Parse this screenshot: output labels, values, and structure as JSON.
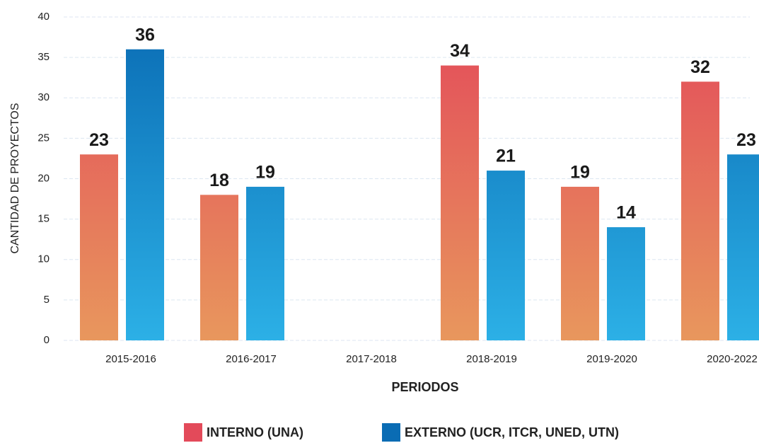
{
  "chart_data": {
    "type": "bar",
    "categories": [
      "2015-2016",
      "2016-2017",
      "2017-2018",
      "2018-2019",
      "2019-2020",
      "2020-2022"
    ],
    "series": [
      {
        "name": "INTERNO (UNA)",
        "color": "#e34a5a",
        "color_end": "#e8975d",
        "values": [
          23,
          18,
          null,
          34,
          19,
          32
        ]
      },
      {
        "name": "EXTERNO (UCR, ITCR, UNED, UTN)",
        "color": "#0a6cb4",
        "color_end": "#2cb0e6",
        "values": [
          36,
          19,
          null,
          21,
          14,
          23
        ]
      }
    ],
    "xlabel": "PERIODOS",
    "ylabel": "CANTIDAD DE PROYECTOS",
    "ylim": [
      0,
      40
    ],
    "yticks": [
      0,
      5,
      10,
      15,
      20,
      25,
      30,
      35,
      40
    ],
    "grid": true,
    "legend": "bottom"
  }
}
